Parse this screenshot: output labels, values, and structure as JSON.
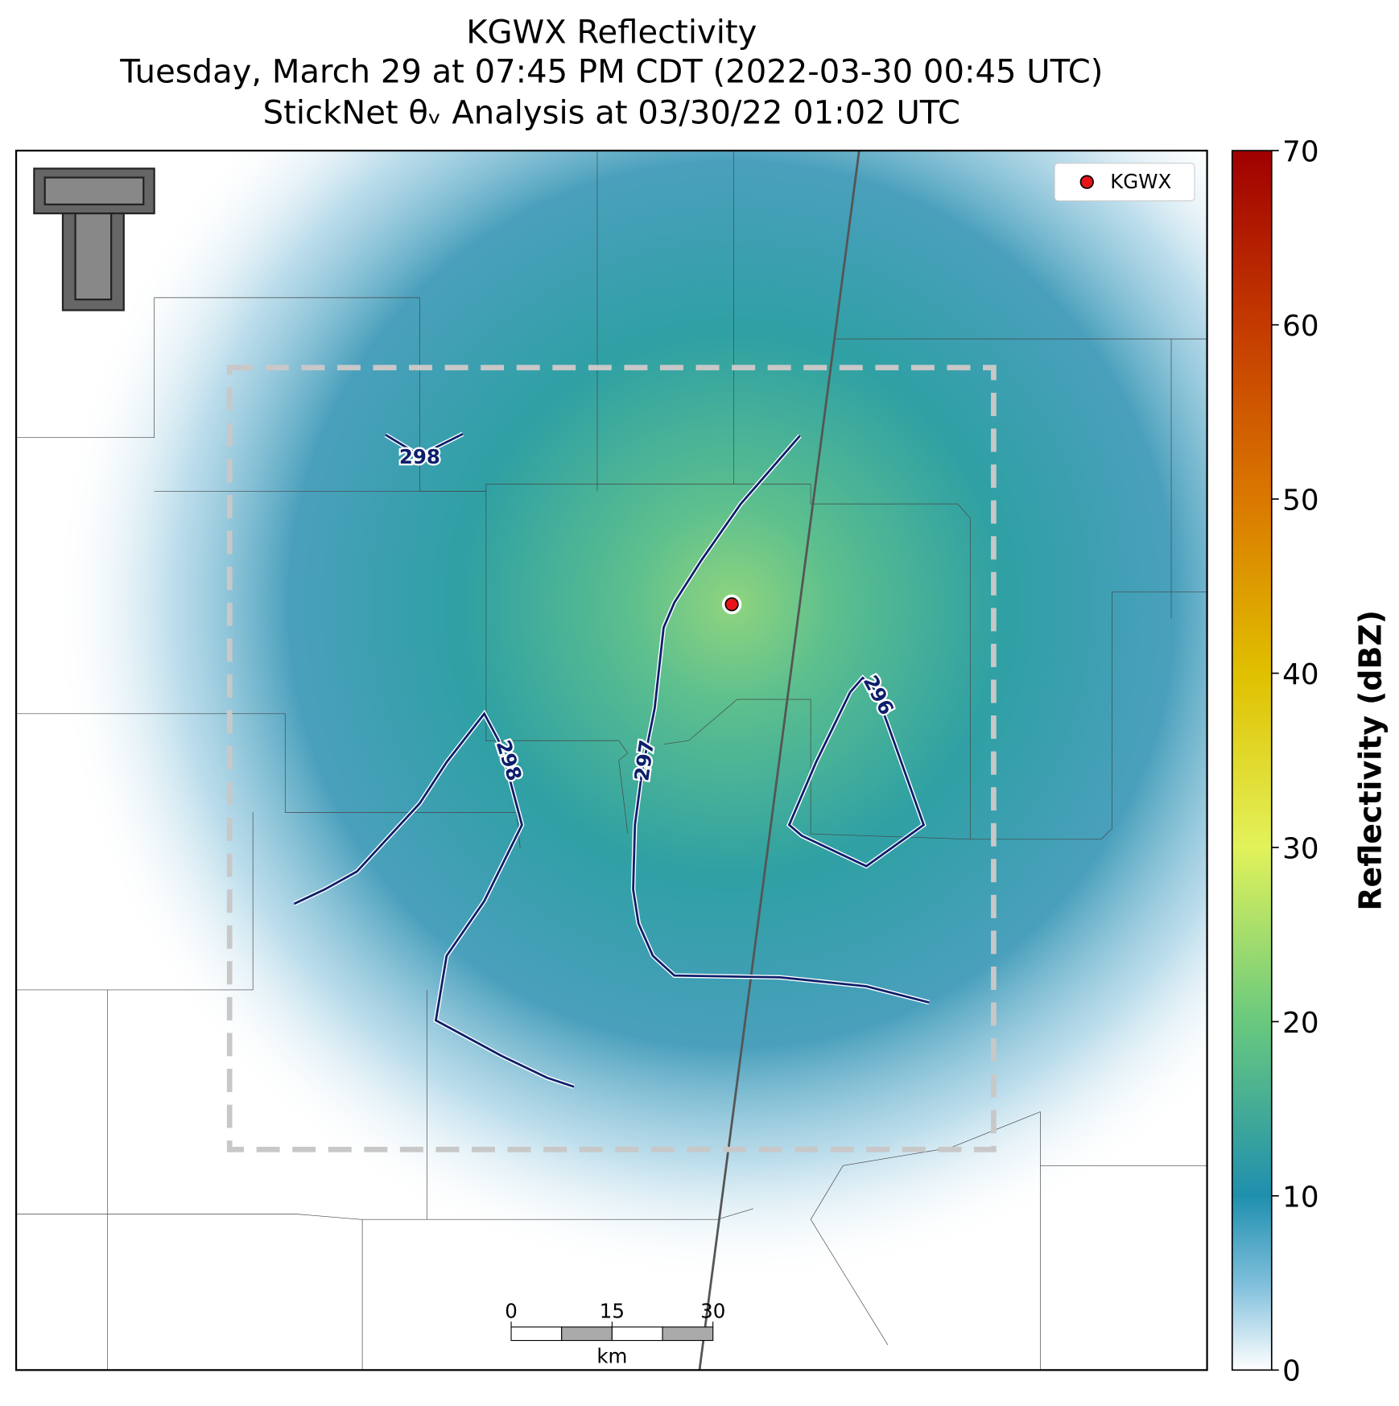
{
  "map": {
    "title": [
      "KGWX Reflectivity",
      "Tuesday, March 29 at 07:45 PM CDT (2022-03-30 00:45 UTC)",
      "StickNet θᵥ Analysis at 03/30/22 01:02 UTC"
    ],
    "legend": {
      "label": "KGWX"
    },
    "colorbar": {
      "label": "Reflectivity (dBZ)",
      "lim": [
        0,
        70
      ],
      "ticks": [
        0,
        10,
        20,
        30,
        40,
        50,
        60,
        70
      ]
    },
    "contours": [
      {
        "level": 298
      },
      {
        "level": 298
      },
      {
        "level": 297
      },
      {
        "level": 296
      }
    ],
    "scale_bar": {
      "ticks": [
        0,
        15,
        30
      ],
      "unit": "km"
    }
  }
}
